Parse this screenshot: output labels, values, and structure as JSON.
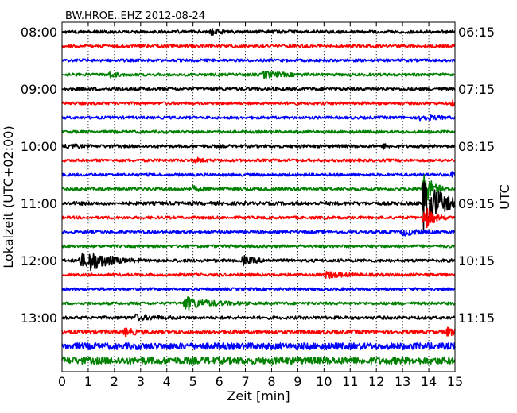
{
  "chart_data": {
    "type": "line",
    "title": "BW.HROE..EHZ 2012-08-24",
    "xlabel": "Zeit  [min]",
    "ylabel_left": "Lokalzeit (UTC+02:00)",
    "ylabel_right": "UTC",
    "xlim": [
      0,
      15
    ],
    "x_ticks": [
      "0",
      "1",
      "2",
      "3",
      "4",
      "5",
      "6",
      "7",
      "8",
      "9",
      "10",
      "11",
      "12",
      "13",
      "14",
      "15"
    ],
    "grid": "vertical dotted",
    "row_minutes": 15,
    "rows": 24,
    "left_ticks": [
      {
        "label": "08:00",
        "row": 0
      },
      {
        "label": "09:00",
        "row": 4
      },
      {
        "label": "10:00",
        "row": 8
      },
      {
        "label": "11:00",
        "row": 12
      },
      {
        "label": "12:00",
        "row": 16
      },
      {
        "label": "13:00",
        "row": 20
      }
    ],
    "right_ticks": [
      {
        "label": "06:15",
        "row": 0
      },
      {
        "label": "07:15",
        "row": 4
      },
      {
        "label": "08:15",
        "row": 8
      },
      {
        "label": "09:15",
        "row": 12
      },
      {
        "label": "10:15",
        "row": 16
      },
      {
        "label": "11:15",
        "row": 20
      }
    ],
    "colors": [
      "#000000",
      "#ff0000",
      "#0000ff",
      "#008000"
    ],
    "traces": [
      {
        "row": 0,
        "noise": 2.0,
        "events": [
          {
            "t": 5.7,
            "amp": 3,
            "dur": 0.3
          }
        ]
      },
      {
        "row": 1,
        "noise": 1.8,
        "events": []
      },
      {
        "row": 2,
        "noise": 1.8,
        "events": []
      },
      {
        "row": 3,
        "noise": 1.8,
        "events": [
          {
            "t": 1.8,
            "amp": 3,
            "dur": 0.3
          },
          {
            "t": 7.7,
            "amp": 4,
            "dur": 0.6
          }
        ]
      },
      {
        "row": 4,
        "noise": 2.0,
        "events": []
      },
      {
        "row": 5,
        "noise": 1.8,
        "events": [
          {
            "t": 14.9,
            "amp": 3,
            "dur": 0.2
          }
        ]
      },
      {
        "row": 6,
        "noise": 1.8,
        "events": [
          {
            "t": 13.7,
            "amp": 4,
            "dur": 0.4
          }
        ]
      },
      {
        "row": 7,
        "noise": 1.8,
        "events": []
      },
      {
        "row": 8,
        "noise": 2.0,
        "events": [
          {
            "t": 0.2,
            "amp": 3,
            "dur": 0.2
          },
          {
            "t": 12.3,
            "amp": 3,
            "dur": 0.1
          }
        ]
      },
      {
        "row": 9,
        "noise": 1.8,
        "events": [
          {
            "t": 5.1,
            "amp": 3,
            "dur": 0.2
          }
        ]
      },
      {
        "row": 10,
        "noise": 1.8,
        "events": [
          {
            "t": 14.9,
            "amp": 3,
            "dur": 0.2
          }
        ]
      },
      {
        "row": 11,
        "noise": 2.0,
        "events": [
          {
            "t": 13.8,
            "amp": 22,
            "dur": 0.3
          },
          {
            "t": 5.0,
            "amp": 2.5,
            "dur": 0.3
          }
        ]
      },
      {
        "row": 12,
        "noise": 2.2,
        "events": [
          {
            "t": 13.8,
            "amp": 36,
            "dur": 0.6
          }
        ]
      },
      {
        "row": 13,
        "noise": 1.8,
        "events": [
          {
            "t": 13.8,
            "amp": 18,
            "dur": 0.3
          }
        ]
      },
      {
        "row": 14,
        "noise": 1.8,
        "events": [
          {
            "t": 13.0,
            "amp": 4,
            "dur": 0.5
          }
        ]
      },
      {
        "row": 15,
        "noise": 1.8,
        "events": []
      },
      {
        "row": 16,
        "noise": 2.0,
        "events": [
          {
            "t": 0.7,
            "amp": 8,
            "dur": 0.5
          },
          {
            "t": 1.0,
            "amp": 10,
            "dur": 0.7
          },
          {
            "t": 6.9,
            "amp": 5,
            "dur": 0.4
          }
        ]
      },
      {
        "row": 17,
        "noise": 1.8,
        "events": [
          {
            "t": 10.1,
            "amp": 4,
            "dur": 0.5
          }
        ]
      },
      {
        "row": 18,
        "noise": 1.8,
        "events": []
      },
      {
        "row": 19,
        "noise": 1.8,
        "events": [
          {
            "t": 4.7,
            "amp": 8,
            "dur": 0.8
          }
        ]
      },
      {
        "row": 20,
        "noise": 2.0,
        "events": [
          {
            "t": 2.8,
            "amp": 3,
            "dur": 0.6
          }
        ]
      },
      {
        "row": 21,
        "noise": 2.5,
        "events": [
          {
            "t": 2.4,
            "amp": 4,
            "dur": 0.3
          },
          {
            "t": 14.7,
            "amp": 4,
            "dur": 0.4
          }
        ]
      },
      {
        "row": 22,
        "noise": 4.2,
        "events": []
      },
      {
        "row": 23,
        "noise": 4.5,
        "events": []
      }
    ]
  }
}
